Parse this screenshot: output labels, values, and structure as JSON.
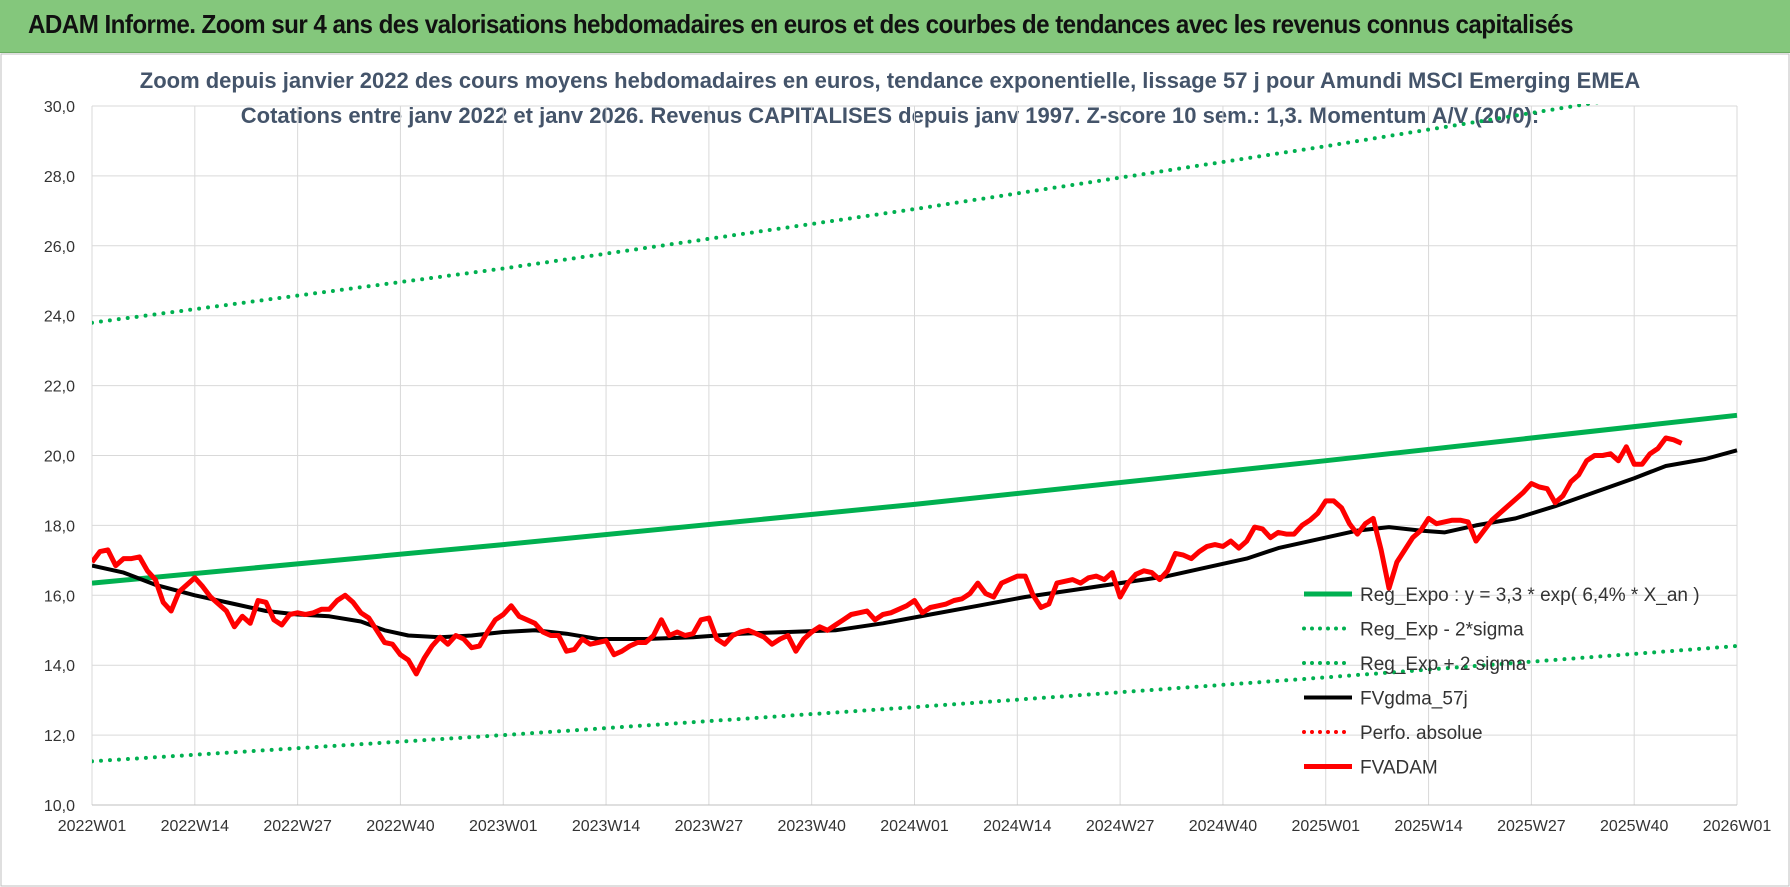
{
  "banner": {
    "title": "ADAM Informe. Zoom sur 4 ans des valorisations hebdomadaires en euros et des courbes de tendances avec les revenus connus capitalisés"
  },
  "colors": {
    "banner_bg": "#84c77c",
    "green": "#00b050",
    "black": "#000000",
    "red": "#ff0000",
    "title": "#44546a",
    "grid": "#d9d9d9"
  },
  "chart_data": {
    "type": "line",
    "title_lines": [
      "Zoom depuis janvier 2022 des cours moyens hebdomadaires en euros, tendance exponentielle, lissage 57 j pour Amundi MSCI Emerging EMEA",
      "Cotations entre janv 2022 et janv 2026. Revenus CAPITALISES depuis janv 1997. Z-score 10 sem.: 1,3. Momentum A/V (20/0):"
    ],
    "ylim": [
      10,
      30
    ],
    "yticks": [
      "10,0",
      "12,0",
      "14,0",
      "16,0",
      "18,0",
      "20,0",
      "22,0",
      "24,0",
      "26,0",
      "28,0",
      "30,0"
    ],
    "xlim": [
      0,
      208
    ],
    "xticks": [
      {
        "label": "2022W01",
        "x": 0
      },
      {
        "label": "2022W14",
        "x": 13
      },
      {
        "label": "2022W27",
        "x": 26
      },
      {
        "label": "2022W40",
        "x": 39
      },
      {
        "label": "2023W01",
        "x": 52
      },
      {
        "label": "2023W14",
        "x": 65
      },
      {
        "label": "2023W27",
        "x": 78
      },
      {
        "label": "2023W40",
        "x": 91
      },
      {
        "label": "2024W01",
        "x": 104
      },
      {
        "label": "2024W14",
        "x": 117
      },
      {
        "label": "2024W27",
        "x": 130
      },
      {
        "label": "2024W40",
        "x": 143
      },
      {
        "label": "2025W01",
        "x": 156
      },
      {
        "label": "2025W14",
        "x": 169
      },
      {
        "label": "2025W27",
        "x": 182
      },
      {
        "label": "2025W40",
        "x": 195
      },
      {
        "label": "2026W01",
        "x": 208
      }
    ],
    "grid": true,
    "legend_position": "bottom-right",
    "series": [
      {
        "name": "Reg_Expo : y = 3,3 * exp( 6,4% *  X_an )",
        "style": "solid",
        "color": "#00b050",
        "points": [
          [
            0,
            16.35
          ],
          [
            52,
            17.45
          ],
          [
            104,
            18.6
          ],
          [
            156,
            19.85
          ],
          [
            208,
            21.15
          ]
        ]
      },
      {
        "name": "Reg_Exp - 2*sigma",
        "style": "dotted",
        "color": "#00b050",
        "points": [
          [
            0,
            11.25
          ],
          [
            52,
            12.0
          ],
          [
            104,
            12.8
          ],
          [
            156,
            13.65
          ],
          [
            208,
            14.55
          ]
        ]
      },
      {
        "name": "Reg_Exp + 2 sigma",
        "style": "dotted",
        "color": "#00b050",
        "points": [
          [
            0,
            23.8
          ],
          [
            52,
            25.35
          ],
          [
            104,
            27.05
          ],
          [
            156,
            28.85
          ],
          [
            208,
            30.75
          ]
        ]
      },
      {
        "name": "FVgdma_57j",
        "style": "solid",
        "color": "#000000",
        "points": [
          [
            0,
            16.85
          ],
          [
            4,
            16.65
          ],
          [
            8,
            16.3
          ],
          [
            13,
            16.0
          ],
          [
            18,
            15.75
          ],
          [
            22,
            15.55
          ],
          [
            26,
            15.45
          ],
          [
            30,
            15.4
          ],
          [
            34,
            15.25
          ],
          [
            37,
            15.0
          ],
          [
            40,
            14.85
          ],
          [
            44,
            14.8
          ],
          [
            48,
            14.85
          ],
          [
            52,
            14.95
          ],
          [
            56,
            15.0
          ],
          [
            60,
            14.9
          ],
          [
            64,
            14.75
          ],
          [
            70,
            14.75
          ],
          [
            76,
            14.8
          ],
          [
            82,
            14.9
          ],
          [
            88,
            14.95
          ],
          [
            94,
            15.0
          ],
          [
            100,
            15.2
          ],
          [
            106,
            15.45
          ],
          [
            112,
            15.7
          ],
          [
            118,
            15.95
          ],
          [
            124,
            16.15
          ],
          [
            130,
            16.35
          ],
          [
            136,
            16.55
          ],
          [
            140,
            16.75
          ],
          [
            146,
            17.05
          ],
          [
            150,
            17.35
          ],
          [
            156,
            17.65
          ],
          [
            160,
            17.85
          ],
          [
            164,
            17.95
          ],
          [
            168,
            17.85
          ],
          [
            171,
            17.8
          ],
          [
            175,
            18.0
          ],
          [
            180,
            18.2
          ],
          [
            185,
            18.55
          ],
          [
            190,
            18.95
          ],
          [
            195,
            19.35
          ],
          [
            199,
            19.7
          ],
          [
            204,
            19.9
          ],
          [
            208,
            20.15
          ]
        ]
      },
      {
        "name": "Perfo. absolue",
        "style": "dotted",
        "color": "#ff0000",
        "points": []
      },
      {
        "name": "FVADAM",
        "style": "solid",
        "color": "#ff0000",
        "points": [
          [
            0,
            16.95
          ],
          [
            1,
            17.25
          ],
          [
            2,
            17.3
          ],
          [
            3,
            16.85
          ],
          [
            4,
            17.05
          ],
          [
            5,
            17.05
          ],
          [
            6,
            17.1
          ],
          [
            7,
            16.7
          ],
          [
            8,
            16.45
          ],
          [
            9,
            15.8
          ],
          [
            10,
            15.55
          ],
          [
            11,
            16.1
          ],
          [
            12,
            16.3
          ],
          [
            13,
            16.5
          ],
          [
            14,
            16.25
          ],
          [
            15,
            15.95
          ],
          [
            16,
            15.75
          ],
          [
            17,
            15.55
          ],
          [
            18,
            15.1
          ],
          [
            19,
            15.4
          ],
          [
            20,
            15.2
          ],
          [
            21,
            15.85
          ],
          [
            22,
            15.8
          ],
          [
            23,
            15.3
          ],
          [
            24,
            15.15
          ],
          [
            25,
            15.45
          ],
          [
            26,
            15.5
          ],
          [
            27,
            15.45
          ],
          [
            28,
            15.5
          ],
          [
            29,
            15.6
          ],
          [
            30,
            15.6
          ],
          [
            31,
            15.85
          ],
          [
            32,
            16.0
          ],
          [
            33,
            15.8
          ],
          [
            34,
            15.5
          ],
          [
            35,
            15.35
          ],
          [
            36,
            15.0
          ],
          [
            37,
            14.65
          ],
          [
            38,
            14.6
          ],
          [
            39,
            14.3
          ],
          [
            40,
            14.15
          ],
          [
            41,
            13.75
          ],
          [
            42,
            14.2
          ],
          [
            43,
            14.55
          ],
          [
            44,
            14.8
          ],
          [
            45,
            14.6
          ],
          [
            46,
            14.85
          ],
          [
            47,
            14.75
          ],
          [
            48,
            14.5
          ],
          [
            49,
            14.55
          ],
          [
            50,
            14.95
          ],
          [
            51,
            15.3
          ],
          [
            52,
            15.45
          ],
          [
            53,
            15.7
          ],
          [
            54,
            15.4
          ],
          [
            55,
            15.3
          ],
          [
            56,
            15.2
          ],
          [
            57,
            14.95
          ],
          [
            58,
            14.85
          ],
          [
            59,
            14.85
          ],
          [
            60,
            14.4
          ],
          [
            61,
            14.45
          ],
          [
            62,
            14.75
          ],
          [
            63,
            14.6
          ],
          [
            64,
            14.65
          ],
          [
            65,
            14.7
          ],
          [
            66,
            14.3
          ],
          [
            67,
            14.4
          ],
          [
            68,
            14.55
          ],
          [
            69,
            14.65
          ],
          [
            70,
            14.65
          ],
          [
            71,
            14.85
          ],
          [
            72,
            15.3
          ],
          [
            73,
            14.85
          ],
          [
            74,
            14.95
          ],
          [
            75,
            14.85
          ],
          [
            76,
            14.9
          ],
          [
            77,
            15.3
          ],
          [
            78,
            15.35
          ],
          [
            79,
            14.75
          ],
          [
            80,
            14.6
          ],
          [
            81,
            14.85
          ],
          [
            82,
            14.95
          ],
          [
            83,
            15.0
          ],
          [
            84,
            14.9
          ],
          [
            85,
            14.8
          ],
          [
            86,
            14.6
          ],
          [
            87,
            14.75
          ],
          [
            88,
            14.85
          ],
          [
            89,
            14.4
          ],
          [
            90,
            14.75
          ],
          [
            91,
            14.95
          ],
          [
            92,
            15.1
          ],
          [
            93,
            15.0
          ],
          [
            94,
            15.15
          ],
          [
            95,
            15.3
          ],
          [
            96,
            15.45
          ],
          [
            97,
            15.5
          ],
          [
            98,
            15.55
          ],
          [
            99,
            15.3
          ],
          [
            100,
            15.45
          ],
          [
            101,
            15.5
          ],
          [
            102,
            15.6
          ],
          [
            103,
            15.7
          ],
          [
            104,
            15.85
          ],
          [
            105,
            15.5
          ],
          [
            106,
            15.65
          ],
          [
            107,
            15.7
          ],
          [
            108,
            15.75
          ],
          [
            109,
            15.85
          ],
          [
            110,
            15.9
          ],
          [
            111,
            16.05
          ],
          [
            112,
            16.35
          ],
          [
            113,
            16.05
          ],
          [
            114,
            15.95
          ],
          [
            115,
            16.35
          ],
          [
            116,
            16.45
          ],
          [
            117,
            16.55
          ],
          [
            118,
            16.55
          ],
          [
            119,
            16.0
          ],
          [
            120,
            15.65
          ],
          [
            121,
            15.75
          ],
          [
            122,
            16.35
          ],
          [
            123,
            16.4
          ],
          [
            124,
            16.45
          ],
          [
            125,
            16.35
          ],
          [
            126,
            16.5
          ],
          [
            127,
            16.55
          ],
          [
            128,
            16.45
          ],
          [
            129,
            16.65
          ],
          [
            130,
            15.95
          ],
          [
            131,
            16.35
          ],
          [
            132,
            16.6
          ],
          [
            133,
            16.7
          ],
          [
            134,
            16.65
          ],
          [
            135,
            16.45
          ],
          [
            136,
            16.7
          ],
          [
            137,
            17.2
          ],
          [
            138,
            17.15
          ],
          [
            139,
            17.05
          ],
          [
            140,
            17.25
          ],
          [
            141,
            17.4
          ],
          [
            142,
            17.45
          ],
          [
            143,
            17.4
          ],
          [
            144,
            17.55
          ],
          [
            145,
            17.35
          ],
          [
            146,
            17.55
          ],
          [
            147,
            17.95
          ],
          [
            148,
            17.9
          ],
          [
            149,
            17.65
          ],
          [
            150,
            17.8
          ],
          [
            151,
            17.75
          ],
          [
            152,
            17.75
          ],
          [
            153,
            18.0
          ],
          [
            154,
            18.15
          ],
          [
            155,
            18.35
          ],
          [
            156,
            18.7
          ],
          [
            157,
            18.7
          ],
          [
            158,
            18.5
          ],
          [
            159,
            18.05
          ],
          [
            160,
            17.75
          ],
          [
            161,
            18.05
          ],
          [
            162,
            18.2
          ],
          [
            163,
            17.3
          ],
          [
            164,
            16.2
          ],
          [
            165,
            16.95
          ],
          [
            166,
            17.3
          ],
          [
            167,
            17.65
          ],
          [
            168,
            17.85
          ],
          [
            169,
            18.2
          ],
          [
            170,
            18.05
          ],
          [
            171,
            18.1
          ],
          [
            172,
            18.15
          ],
          [
            173,
            18.15
          ],
          [
            174,
            18.1
          ],
          [
            175,
            17.55
          ],
          [
            176,
            17.85
          ],
          [
            177,
            18.15
          ],
          [
            178,
            18.35
          ],
          [
            179,
            18.55
          ],
          [
            180,
            18.75
          ],
          [
            181,
            18.95
          ],
          [
            182,
            19.2
          ],
          [
            183,
            19.1
          ],
          [
            184,
            19.05
          ],
          [
            185,
            18.65
          ],
          [
            186,
            18.85
          ],
          [
            187,
            19.25
          ],
          [
            188,
            19.45
          ],
          [
            189,
            19.85
          ],
          [
            190,
            20.0
          ],
          [
            191,
            20.0
          ],
          [
            192,
            20.05
          ],
          [
            193,
            19.85
          ],
          [
            194,
            20.25
          ],
          [
            195,
            19.75
          ],
          [
            196,
            19.75
          ],
          [
            197,
            20.05
          ],
          [
            198,
            20.2
          ],
          [
            199,
            20.5
          ],
          [
            200,
            20.45
          ],
          [
            201,
            20.35
          ]
        ]
      }
    ]
  }
}
